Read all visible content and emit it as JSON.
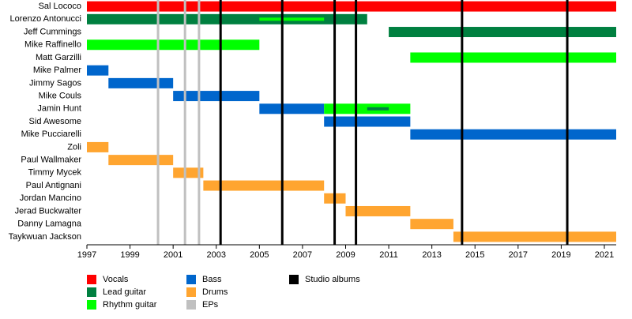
{
  "chart_data": {
    "type": "timeline",
    "xlim": [
      1997,
      2021.55
    ],
    "xticks": [
      1997,
      1999,
      2001,
      2003,
      2005,
      2007,
      2009,
      2011,
      2013,
      2015,
      2017,
      2019,
      2021
    ],
    "roles": [
      {
        "name": "Vocals",
        "color": "#ff0000"
      },
      {
        "name": "Lead guitar",
        "color": "#008040"
      },
      {
        "name": "Rhythm guitar",
        "color": "#00ff00"
      },
      {
        "name": "Bass",
        "color": "#0066cc"
      },
      {
        "name": "Drums",
        "color": "#ffa530"
      }
    ],
    "events": [
      {
        "name": "EPs",
        "color": "#c0c0c0",
        "x": [
          2000.3,
          2001.55,
          2002.2
        ]
      },
      {
        "name": "Studio albums",
        "color": "#000000",
        "x": [
          2003.2,
          2006.06,
          2008.49,
          2009.48,
          2014.4,
          2019.28
        ]
      }
    ],
    "members": [
      {
        "name": "Sal Lococo",
        "periods": [
          {
            "role": "Vocals",
            "start": 1997,
            "end": 2021.55
          }
        ]
      },
      {
        "name": "Lorenzo Antonucci",
        "periods": [
          {
            "role": "Lead guitar",
            "start": 1997,
            "end": 2010
          },
          {
            "role": "Rhythm guitar",
            "start": 2005,
            "end": 2008,
            "thin": true
          }
        ]
      },
      {
        "name": "Jeff Cummings",
        "periods": [
          {
            "role": "Lead guitar",
            "start": 2011,
            "end": 2021.55
          }
        ]
      },
      {
        "name": "Mike Raffinello",
        "periods": [
          {
            "role": "Rhythm guitar",
            "start": 1997,
            "end": 2005
          }
        ]
      },
      {
        "name": "Matt Garzilli",
        "periods": [
          {
            "role": "Rhythm guitar",
            "start": 2012,
            "end": 2021.55
          }
        ]
      },
      {
        "name": "Mike Palmer",
        "periods": [
          {
            "role": "Bass",
            "start": 1997,
            "end": 1998
          }
        ]
      },
      {
        "name": "Jimmy Sagos",
        "periods": [
          {
            "role": "Bass",
            "start": 1998,
            "end": 2001
          }
        ]
      },
      {
        "name": "Mike Couls",
        "periods": [
          {
            "role": "Bass",
            "start": 2001,
            "end": 2005
          }
        ]
      },
      {
        "name": "Jamin Hunt",
        "periods": [
          {
            "role": "Bass",
            "start": 2005,
            "end": 2008
          },
          {
            "role": "Rhythm guitar",
            "start": 2008,
            "end": 2012
          },
          {
            "role": "Lead guitar",
            "start": 2010,
            "end": 2011,
            "thin": true
          }
        ]
      },
      {
        "name": "Sid Awesome",
        "periods": [
          {
            "role": "Bass",
            "start": 2008,
            "end": 2012
          }
        ]
      },
      {
        "name": "Mike Pucciarelli",
        "periods": [
          {
            "role": "Bass",
            "start": 2012,
            "end": 2021.55
          }
        ]
      },
      {
        "name": "Zoli",
        "periods": [
          {
            "role": "Drums",
            "start": 1997,
            "end": 1998
          }
        ]
      },
      {
        "name": "Paul Wallmaker",
        "periods": [
          {
            "role": "Drums",
            "start": 1998,
            "end": 2001
          }
        ]
      },
      {
        "name": "Timmy Mycek",
        "periods": [
          {
            "role": "Drums",
            "start": 2001,
            "end": 2002.4
          }
        ]
      },
      {
        "name": "Paul Antignani",
        "periods": [
          {
            "role": "Drums",
            "start": 2002.4,
            "end": 2008
          }
        ]
      },
      {
        "name": "Jordan Mancino",
        "periods": [
          {
            "role": "Drums",
            "start": 2008,
            "end": 2009
          }
        ]
      },
      {
        "name": "Jerad Buckwalter",
        "periods": [
          {
            "role": "Drums",
            "start": 2009,
            "end": 2012
          }
        ]
      },
      {
        "name": "Danny Lamagna",
        "periods": [
          {
            "role": "Drums",
            "start": 2012,
            "end": 2014
          }
        ]
      },
      {
        "name": "Taykwuan Jackson",
        "periods": [
          {
            "role": "Drums",
            "start": 2014,
            "end": 2021.55
          }
        ]
      }
    ]
  }
}
